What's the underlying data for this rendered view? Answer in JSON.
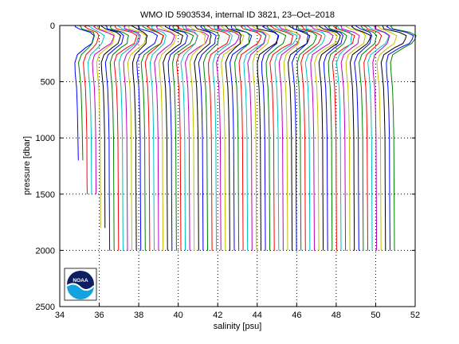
{
  "chart_data": {
    "type": "line",
    "title": "WMO ID 5903534, internal ID 3821, 23–Oct–2018",
    "xlabel": "salinity [psu]",
    "ylabel": "pressure [dbar]",
    "xlim": [
      34,
      52
    ],
    "ylim": [
      0,
      2500
    ],
    "y_reversed": true,
    "xticks": [
      "34",
      "36",
      "38",
      "40",
      "42",
      "44",
      "46",
      "48",
      "50",
      "52"
    ],
    "yticks": [
      "0",
      "500",
      "1000",
      "1500",
      "2000",
      "2500"
    ],
    "grid": true,
    "offset_profiles": {
      "count": 72,
      "first_deep_salinity": 34.9,
      "last_deep_salinity": 50.9,
      "max_pressure": 2000,
      "colors": [
        "#0000ff",
        "#008000",
        "#ff0000",
        "#00bfbf",
        "#bf00bf",
        "#bfbf00",
        "#000000"
      ]
    }
  },
  "logo": {
    "text": "NOAA"
  }
}
